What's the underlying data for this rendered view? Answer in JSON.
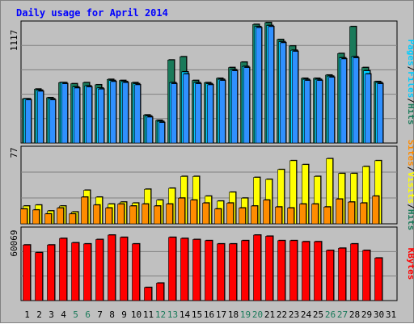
{
  "colors": {
    "background": "#c0c0c0",
    "plot": "#c0c0c0",
    "title": "#0000ff",
    "hits": "#1a7a5a",
    "files": "#00ccff",
    "pages": "#3090ff",
    "visits": "#ffff00",
    "sites": "#ff8c00",
    "kbytes": "#ff0000",
    "weekend_label": "#1a7a5a",
    "weekday_label": "#000000"
  },
  "chart_data": [
    {
      "type": "bar",
      "title": "Daily usage for April 2014",
      "panel": "top",
      "ymax_label": "1117",
      "ylim": [
        0,
        1117
      ],
      "legend": [
        "Pages",
        "/",
        "Files",
        "/",
        "Hits"
      ],
      "categories": [
        "1",
        "2",
        "3",
        "4",
        "5",
        "6",
        "7",
        "8",
        "9",
        "10",
        "11",
        "12",
        "13",
        "14",
        "15",
        "16",
        "17",
        "18",
        "19",
        "20",
        "21",
        "22",
        "23",
        "24",
        "25",
        "26",
        "27",
        "28",
        "29",
        "30",
        "31"
      ],
      "series": [
        {
          "name": "Hits",
          "values": [
            410,
            500,
            420,
            560,
            550,
            560,
            540,
            590,
            580,
            560,
            260,
            210,
            770,
            800,
            580,
            560,
            600,
            700,
            750,
            1100,
            1117,
            960,
            900,
            600,
            600,
            630,
            830,
            1080,
            700,
            570,
            0
          ]
        },
        {
          "name": "Files",
          "values": [
            410,
            490,
            410,
            560,
            520,
            530,
            510,
            580,
            570,
            550,
            250,
            200,
            560,
            660,
            560,
            550,
            590,
            680,
            710,
            1080,
            1090,
            940,
            860,
            590,
            590,
            620,
            790,
            800,
            670,
            560,
            0
          ]
        },
        {
          "name": "Pages",
          "values": [
            400,
            480,
            400,
            550,
            510,
            520,
            500,
            570,
            560,
            540,
            240,
            190,
            550,
            640,
            550,
            540,
            580,
            670,
            700,
            1070,
            1080,
            930,
            850,
            580,
            580,
            610,
            780,
            790,
            640,
            550,
            0
          ]
        }
      ]
    },
    {
      "type": "bar",
      "panel": "middle",
      "ymax_label": "77",
      "ylim": [
        0,
        77
      ],
      "legend": [
        "Sites",
        "/",
        "Visits",
        "/",
        "Hits"
      ],
      "categories": [
        "1",
        "2",
        "3",
        "4",
        "5",
        "6",
        "7",
        "8",
        "9",
        "10",
        "11",
        "12",
        "13",
        "14",
        "15",
        "16",
        "17",
        "18",
        "19",
        "20",
        "21",
        "22",
        "23",
        "24",
        "25",
        "26",
        "27",
        "28",
        "29",
        "30",
        "31"
      ],
      "series": [
        {
          "name": "Visits",
          "values": [
            18,
            19,
            13,
            18,
            12,
            34,
            27,
            20,
            22,
            21,
            35,
            24,
            36,
            48,
            48,
            28,
            23,
            32,
            26,
            47,
            45,
            55,
            64,
            60,
            48,
            66,
            51,
            51,
            58,
            64,
            0
          ]
        },
        {
          "name": "Sites",
          "values": [
            15,
            14,
            10,
            16,
            10,
            27,
            19,
            16,
            20,
            18,
            20,
            18,
            20,
            26,
            24,
            21,
            15,
            21,
            16,
            18,
            24,
            17,
            16,
            20,
            20,
            17,
            25,
            22,
            21,
            28,
            0
          ]
        }
      ]
    },
    {
      "type": "bar",
      "panel": "bottom",
      "ymax_label": "60069",
      "ylim": [
        0,
        60069
      ],
      "legend": [
        "KBytes"
      ],
      "categories": [
        "1",
        "2",
        "3",
        "4",
        "5",
        "6",
        "7",
        "8",
        "9",
        "10",
        "11",
        "12",
        "13",
        "14",
        "15",
        "16",
        "17",
        "18",
        "19",
        "20",
        "21",
        "22",
        "23",
        "24",
        "25",
        "26",
        "27",
        "28",
        "29",
        "30",
        "31"
      ],
      "series": [
        {
          "name": "KBytes",
          "values": [
            51000,
            44000,
            51000,
            57000,
            53000,
            52000,
            56000,
            60069,
            58000,
            52000,
            12000,
            16000,
            58000,
            57000,
            56000,
            55000,
            52000,
            52000,
            55000,
            60069,
            59000,
            55000,
            55000,
            54000,
            54000,
            46000,
            48000,
            52000,
            46000,
            39000,
            0
          ]
        }
      ]
    }
  ]
}
